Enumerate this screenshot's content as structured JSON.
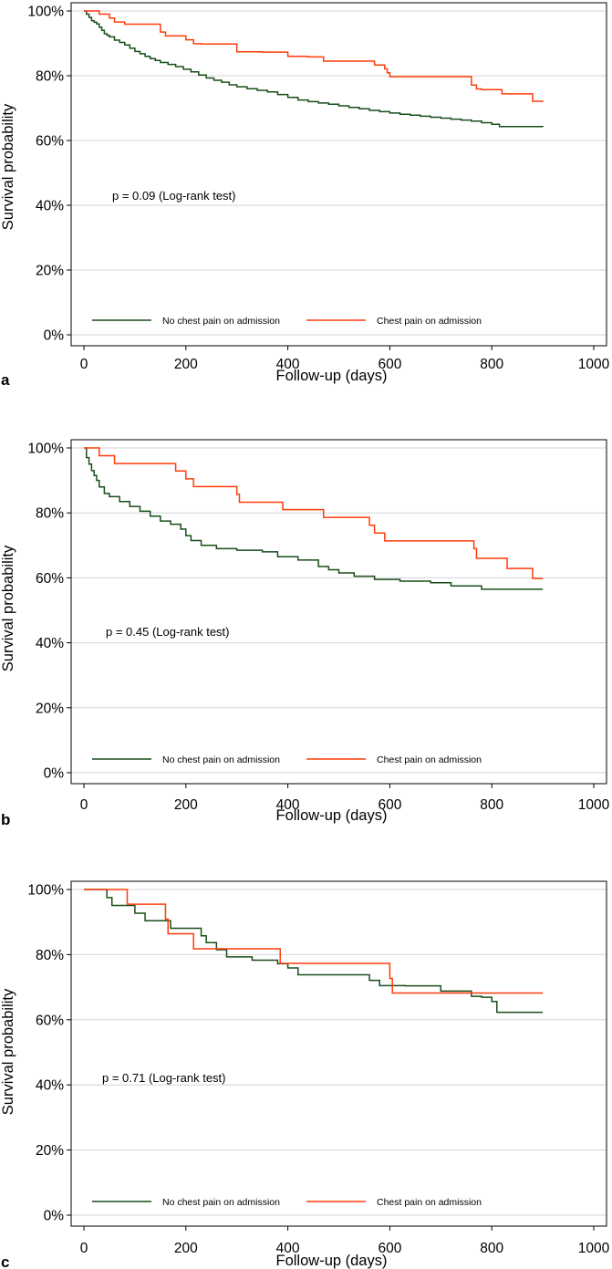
{
  "colors": {
    "no_pain": "#1a4d1a",
    "pain": "#ff3c0a",
    "grid": "#d4d4d4",
    "axis": "#000000"
  },
  "chart_data": [
    {
      "type": "line",
      "panel_label": "a",
      "xlabel": "Follow-up (days)",
      "ylabel": "Survival probability",
      "xlim": [
        0,
        1000
      ],
      "ylim": [
        0,
        100
      ],
      "x_ticks": [
        0,
        200,
        400,
        600,
        800,
        1000
      ],
      "x_tick_labels": [
        "0",
        "200",
        "400",
        "600",
        "800",
        "1000"
      ],
      "y_ticks": [
        0,
        20,
        40,
        60,
        80,
        100
      ],
      "y_tick_labels": [
        "0%",
        "20%",
        "40%",
        "60%",
        "80%",
        "100%"
      ],
      "grid": true,
      "annotation": "p = 0.09 (Log-rank test)",
      "legend": {
        "placement": "bottom",
        "entries": [
          "No chest pain on admission",
          "Chest pain on admission"
        ]
      },
      "series": [
        {
          "name": "No chest pain on admission",
          "color_key": "no_pain",
          "x": [
            0,
            5,
            10,
            15,
            20,
            25,
            30,
            35,
            40,
            45,
            50,
            60,
            70,
            80,
            90,
            100,
            110,
            120,
            130,
            140,
            150,
            165,
            180,
            195,
            210,
            225,
            240,
            255,
            270,
            285,
            300,
            320,
            340,
            360,
            380,
            400,
            420,
            440,
            460,
            480,
            500,
            520,
            540,
            560,
            580,
            600,
            620,
            640,
            660,
            680,
            700,
            720,
            740,
            760,
            780,
            800,
            815,
            900
          ],
          "y": [
            100,
            99,
            98,
            97,
            96.5,
            96,
            95,
            94,
            93,
            92.5,
            92,
            91,
            90.3,
            89.5,
            88.5,
            87.5,
            86.8,
            86,
            85.3,
            84.7,
            84.1,
            83.5,
            82.8,
            82,
            81.2,
            80.2,
            79.3,
            78.6,
            78,
            77.2,
            76.6,
            76,
            75.5,
            75,
            74.2,
            73.3,
            72.5,
            72,
            71.6,
            71.2,
            70.7,
            70.2,
            69.8,
            69.3,
            68.9,
            68.5,
            68.1,
            67.8,
            67.5,
            67.2,
            66.9,
            66.6,
            66.3,
            66,
            65.5,
            65,
            64.3,
            64.2
          ]
        },
        {
          "name": "Chest pain on admission",
          "color_key": "pain",
          "x": [
            0,
            20,
            30,
            50,
            60,
            80,
            150,
            160,
            200,
            215,
            230,
            300,
            350,
            400,
            440,
            470,
            570,
            590,
            595,
            600,
            760,
            770,
            780,
            820,
            880,
            900
          ],
          "y": [
            100,
            100,
            99,
            97.8,
            96.6,
            95.9,
            93.5,
            92.3,
            91.1,
            89.9,
            89.8,
            87.4,
            87.3,
            86.0,
            85.8,
            84.5,
            83.3,
            82.1,
            80.9,
            79.7,
            77.1,
            75.9,
            75.7,
            74.4,
            72.1,
            72.0
          ]
        }
      ]
    },
    {
      "type": "line",
      "panel_label": "b",
      "xlabel": "Follow-up (days)",
      "ylabel": "Survival probability",
      "xlim": [
        0,
        1000
      ],
      "ylim": [
        0,
        100
      ],
      "x_ticks": [
        0,
        200,
        400,
        600,
        800,
        1000
      ],
      "x_tick_labels": [
        "0",
        "200",
        "400",
        "600",
        "800",
        "1000"
      ],
      "y_ticks": [
        0,
        20,
        40,
        60,
        80,
        100
      ],
      "y_tick_labels": [
        "0%",
        "20%",
        "40%",
        "60%",
        "80%",
        "100%"
      ],
      "grid": true,
      "annotation": "p = 0.45 (Log-rank test)",
      "legend": {
        "placement": "bottom",
        "entries": [
          "No chest pain on admission",
          "Chest pain on admission"
        ]
      },
      "series": [
        {
          "name": "No chest pain on admission",
          "color_key": "no_pain",
          "x": [
            0,
            5,
            10,
            15,
            20,
            25,
            30,
            40,
            50,
            70,
            90,
            110,
            130,
            150,
            170,
            190,
            200,
            210,
            230,
            260,
            300,
            350,
            380,
            420,
            460,
            480,
            500,
            530,
            570,
            620,
            680,
            720,
            780,
            900
          ],
          "y": [
            100,
            97,
            95,
            93,
            91.5,
            90,
            88,
            86,
            85,
            83.5,
            82,
            80.5,
            79,
            77.5,
            76.5,
            75,
            73,
            71.5,
            70,
            69,
            68.5,
            68,
            66.5,
            65.5,
            63.5,
            62.5,
            61.5,
            60.5,
            59.5,
            59,
            58.5,
            57.5,
            56.5,
            56.5
          ]
        },
        {
          "name": "Chest pain on admission",
          "color_key": "pain",
          "x": [
            0,
            20,
            30,
            60,
            180,
            200,
            215,
            300,
            305,
            390,
            470,
            560,
            570,
            590,
            765,
            770,
            830,
            880,
            900
          ],
          "y": [
            100,
            100,
            97.6,
            95.2,
            92.9,
            90.5,
            88.1,
            85.7,
            83.3,
            81.0,
            78.6,
            76.2,
            73.8,
            71.4,
            69.0,
            66.0,
            62.9,
            59.8,
            59.8
          ]
        }
      ]
    },
    {
      "type": "line",
      "panel_label": "c",
      "xlabel": "Follow-up (days)",
      "ylabel": "Survival probability",
      "xlim": [
        0,
        1000
      ],
      "ylim": [
        0,
        100
      ],
      "x_ticks": [
        0,
        200,
        400,
        600,
        800,
        1000
      ],
      "x_tick_labels": [
        "0",
        "200",
        "400",
        "600",
        "800",
        "1000"
      ],
      "y_ticks": [
        0,
        20,
        40,
        60,
        80,
        100
      ],
      "y_tick_labels": [
        "0%",
        "20%",
        "40%",
        "60%",
        "80%",
        "100%"
      ],
      "grid": true,
      "annotation": "p = 0.71 (Log-rank test)",
      "legend": {
        "placement": "bottom",
        "entries": [
          "No chest pain on admission",
          "Chest pain on admission"
        ]
      },
      "series": [
        {
          "name": "No chest pain on admission",
          "color_key": "no_pain",
          "x": [
            0,
            40,
            45,
            55,
            100,
            120,
            170,
            230,
            240,
            260,
            280,
            330,
            380,
            400,
            420,
            560,
            580,
            630,
            700,
            760,
            780,
            800,
            810,
            900
          ],
          "y": [
            100,
            100,
            97.5,
            95.1,
            92.7,
            90.4,
            88.1,
            85.8,
            83.7,
            81.5,
            79.3,
            78.3,
            77.2,
            75.9,
            73.8,
            72.1,
            70.5,
            70.4,
            68.8,
            67.2,
            66.9,
            65.6,
            62.3,
            62.3
          ]
        },
        {
          "name": "Chest pain on admission",
          "color_key": "pain",
          "x": [
            0,
            80,
            85,
            160,
            165,
            215,
            380,
            385,
            595,
            600,
            605,
            740,
            900
          ],
          "y": [
            100,
            100,
            95.5,
            90.9,
            86.4,
            81.8,
            81.8,
            77.3,
            77.3,
            72.7,
            68.2,
            68.2,
            68.2
          ]
        }
      ]
    }
  ]
}
